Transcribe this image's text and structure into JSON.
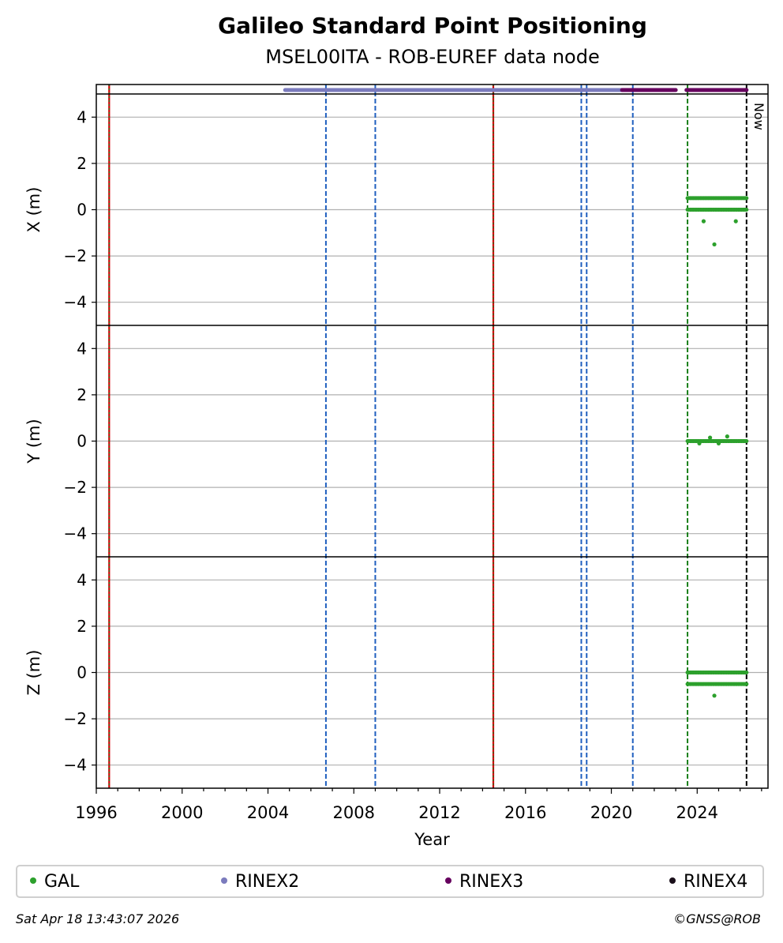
{
  "title": "Galileo Standard Point Positioning",
  "subtitle": "MSEL00ITA - ROB-EUREF data node",
  "footer": {
    "timestamp": "Sat Apr 18 13:43:07 2026",
    "copyright": "©GNSS@ROB"
  },
  "legend": [
    {
      "label": "GAL",
      "color": "#2ca02c"
    },
    {
      "label": "RINEX2",
      "color": "#7b7bbd"
    },
    {
      "label": "RINEX3",
      "color": "#66005e"
    },
    {
      "label": "RINEX4",
      "color": "#1a0f1a"
    }
  ],
  "chart_data": {
    "type": "scatter",
    "title": "Galileo Standard Point Positioning",
    "subtitle": "MSEL00ITA - ROB-EUREF data node",
    "xlabel": "Year",
    "xlim": [
      1996.0,
      2027.3
    ],
    "xticks": [
      1996,
      2000,
      2004,
      2008,
      2012,
      2016,
      2020,
      2024
    ],
    "xtick_labels": [
      "1996",
      "2000",
      "2004",
      "2008",
      "2012",
      "2016",
      "2020",
      "2024"
    ],
    "grid": true,
    "legend_position": "bottom",
    "now_label": "Now",
    "panels": [
      {
        "ylabel": "X (m)",
        "ylim": [
          -5,
          5
        ],
        "yticks": [
          -4,
          -2,
          0,
          2,
          4
        ],
        "ytick_labels": [
          "−4",
          "−2",
          "0",
          "2",
          "4"
        ]
      },
      {
        "ylabel": "Y (m)",
        "ylim": [
          -5,
          5
        ],
        "yticks": [
          -4,
          -2,
          0,
          2,
          4
        ],
        "ytick_labels": [
          "−4",
          "−2",
          "0",
          "2",
          "4"
        ]
      },
      {
        "ylabel": "Z (m)",
        "ylim": [
          -5,
          5
        ],
        "yticks": [
          -4,
          -2,
          0,
          2,
          4
        ],
        "ytick_labels": [
          "−4",
          "−2",
          "0",
          "2",
          "4"
        ]
      }
    ],
    "vertical_lines": [
      {
        "x": 1996.6,
        "color": "#cc0000",
        "style": "solid-dotted-green"
      },
      {
        "x": 2014.5,
        "color": "#cc0000",
        "style": "solid-dotted-green"
      },
      {
        "x": 2006.7,
        "color": "#1f5fbf",
        "style": "dashed"
      },
      {
        "x": 2009.0,
        "color": "#1f5fbf",
        "style": "dashed"
      },
      {
        "x": 2018.6,
        "color": "#1f5fbf",
        "style": "dashed"
      },
      {
        "x": 2018.85,
        "color": "#1f5fbf",
        "style": "dashed"
      },
      {
        "x": 2021.0,
        "color": "#1f5fbf",
        "style": "dashed"
      },
      {
        "x": 2023.55,
        "color": "#1a7f1a",
        "style": "dashed"
      },
      {
        "x": 2026.3,
        "color": "#000000",
        "style": "dashed"
      }
    ],
    "data_availability": [
      {
        "name": "RINEX2",
        "color": "#7b7bbd",
        "start": 2004.8,
        "end": 2020.5
      },
      {
        "name": "RINEX3",
        "color": "#66005e",
        "start": 2020.5,
        "end": 2023.0
      },
      {
        "name": "RINEX3",
        "color": "#66005e",
        "start": 2023.5,
        "end": 2026.3
      }
    ],
    "series": [
      {
        "name": "GAL",
        "color": "#2ca02c",
        "x_range": [
          2023.55,
          2026.3
        ],
        "x_levels": [
          0.5,
          0.0
        ],
        "x_outliers": [
          [
            2024.3,
            -0.5
          ],
          [
            2024.8,
            -1.5
          ],
          [
            2025.8,
            -0.5
          ]
        ],
        "y_levels": [
          0.0
        ],
        "y_outliers": [
          [
            2024.6,
            0.15
          ],
          [
            2025.4,
            0.2
          ],
          [
            2024.1,
            -0.1
          ],
          [
            2025.0,
            -0.1
          ]
        ],
        "z_levels": [
          0.0,
          -0.5
        ],
        "z_outliers": [
          [
            2024.8,
            -1.0
          ]
        ]
      }
    ]
  }
}
